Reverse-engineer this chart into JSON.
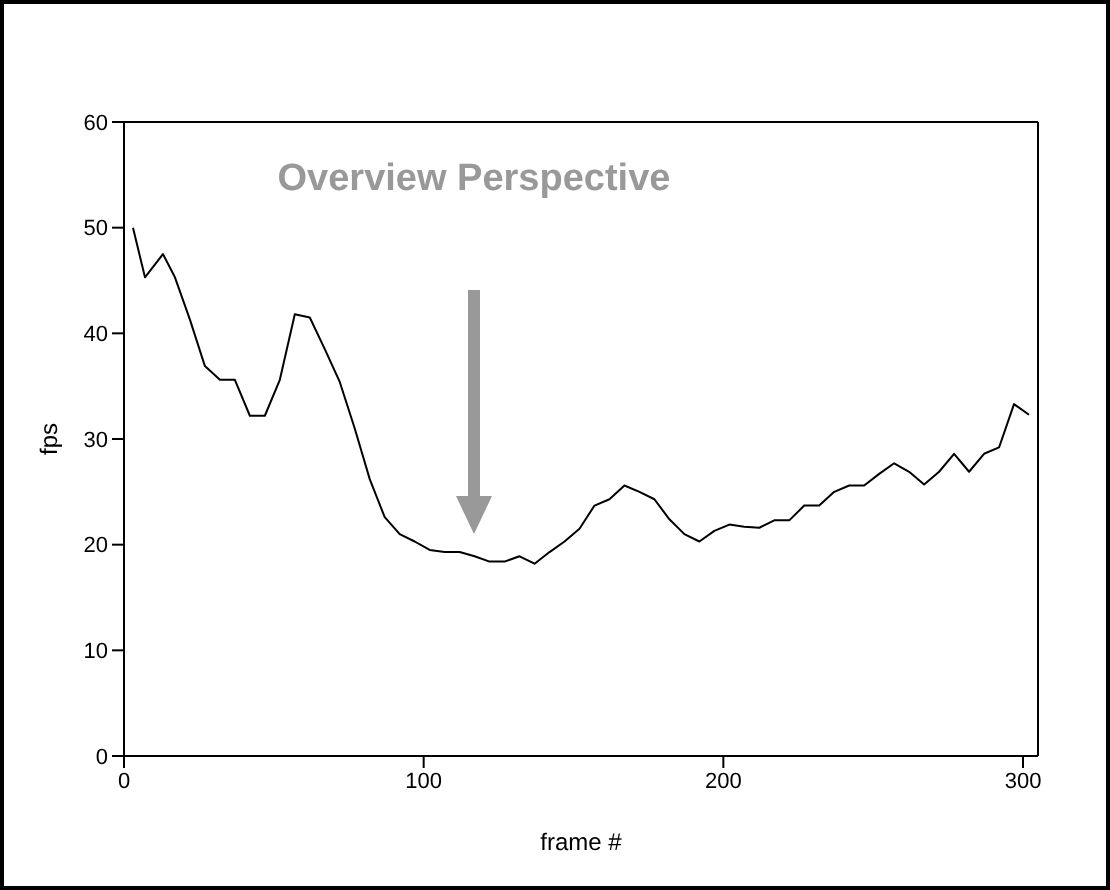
{
  "chart_data": {
    "type": "line",
    "xlabel": "frame #",
    "ylabel": "fps",
    "x": [
      3,
      7,
      13,
      17,
      22,
      27,
      32,
      37,
      42,
      47,
      52,
      57,
      62,
      67,
      72,
      77,
      82,
      87,
      92,
      97,
      102,
      107,
      112,
      117,
      122,
      127,
      132,
      137,
      142,
      147,
      152,
      157,
      162,
      167,
      172,
      177,
      182,
      187,
      192,
      197,
      202,
      207,
      212,
      217,
      222,
      227,
      232,
      237,
      242,
      247,
      252,
      257,
      262,
      267,
      272,
      277,
      282,
      287,
      292,
      297,
      302
    ],
    "series": [
      {
        "color": "#000000",
        "values": [
          50,
          45.3,
          47.5,
          45.3,
          41.3,
          36.9,
          35.6,
          35.6,
          32.2,
          32.2,
          35.6,
          41.8,
          41.5,
          38.5,
          35.4,
          31,
          26.2,
          22.6,
          21,
          20.3,
          19.5,
          19.3,
          19.3,
          18.9,
          18.4,
          18.4,
          18.9,
          18.2,
          19.3,
          20.3,
          21.5,
          23.7,
          24.3,
          25.6,
          25,
          24.3,
          22.4,
          21,
          20.3,
          21.3,
          21.9,
          21.7,
          21.6,
          22.3,
          22.3,
          23.7,
          23.7,
          25,
          25.6,
          25.6,
          26.7,
          27.7,
          26.9,
          25.7,
          26.9,
          28.6,
          26.9,
          28.6,
          29.2,
          33.3,
          32.3
        ]
      }
    ],
    "xlim": [
      0,
      305
    ],
    "xticks": [
      0,
      100,
      200,
      300
    ],
    "ylim": [
      0,
      60
    ],
    "yticks": [
      0,
      10,
      20,
      30,
      40,
      50,
      60
    ],
    "grid": false,
    "legend": false,
    "marker": "none",
    "line_style": "solid",
    "annotations": [
      "Overview Perspective"
    ]
  }
}
